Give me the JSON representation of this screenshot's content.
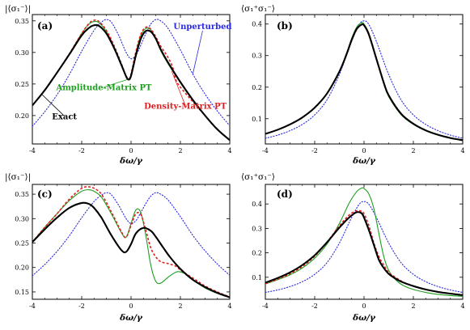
{
  "chart_data": [
    {
      "type": "line",
      "panel_label": "(a)",
      "ylabel": "|⟨σ₁⁻⟩|",
      "xlabel": "δω/γ",
      "xlim": [
        -4,
        4
      ],
      "ylim": [
        0.155,
        0.36
      ],
      "xticks": [
        -4,
        -2,
        0,
        2,
        4
      ],
      "yticks": [
        0.2,
        0.25,
        0.3,
        0.35
      ],
      "ytick_labels": [
        "0.20",
        "0.25",
        "0.30",
        "0.35"
      ],
      "xtick_labels": [
        "-4",
        "-2",
        "0",
        "2",
        "4"
      ],
      "series": [
        {
          "key": "unperturbed",
          "color": "#2a2ae0",
          "style": "dotted",
          "x": [
            -4,
            -3.5,
            -3,
            -2.5,
            -2,
            -1.5,
            -1.2,
            -1,
            -0.8,
            -0.5,
            -0.2,
            0,
            0.2,
            0.4,
            0.6,
            0.8,
            1,
            1.2,
            1.5,
            2,
            2.5,
            3,
            3.5,
            4
          ],
          "y": [
            0.183,
            0.206,
            0.233,
            0.265,
            0.302,
            0.335,
            0.348,
            0.352,
            0.348,
            0.327,
            0.3,
            0.29,
            0.296,
            0.312,
            0.33,
            0.345,
            0.352,
            0.35,
            0.338,
            0.304,
            0.266,
            0.234,
            0.207,
            0.184
          ]
        },
        {
          "key": "amplitude",
          "color": "#1f9e1f",
          "style": "solid",
          "x": [
            -4,
            -3.5,
            -3,
            -2.5,
            -2,
            -1.7,
            -1.5,
            -1.3,
            -1,
            -0.7,
            -0.4,
            -0.2,
            -0.1,
            0,
            0.2,
            0.4,
            0.6,
            0.8,
            1,
            1.2,
            1.5,
            2,
            2.5,
            3,
            3.5,
            4
          ],
          "y": [
            0.216,
            0.24,
            0.268,
            0.298,
            0.33,
            0.345,
            0.349,
            0.347,
            0.333,
            0.31,
            0.282,
            0.262,
            0.258,
            0.265,
            0.3,
            0.327,
            0.338,
            0.336,
            0.322,
            0.303,
            0.282,
            0.252,
            0.224,
            0.2,
            0.178,
            0.161
          ]
        },
        {
          "key": "density",
          "color": "#e02020",
          "style": "dashed",
          "x": [
            -4,
            -3.5,
            -3,
            -2.5,
            -2,
            -1.7,
            -1.5,
            -1.3,
            -1,
            -0.7,
            -0.4,
            -0.2,
            -0.1,
            0,
            0.2,
            0.4,
            0.6,
            0.8,
            1,
            1.2,
            1.5,
            1.7,
            1.8,
            2,
            2.5,
            3,
            3.5,
            4
          ],
          "y": [
            0.216,
            0.24,
            0.268,
            0.298,
            0.33,
            0.346,
            0.351,
            0.349,
            0.335,
            0.312,
            0.283,
            0.263,
            0.258,
            0.266,
            0.302,
            0.329,
            0.34,
            0.337,
            0.325,
            0.31,
            0.292,
            0.275,
            0.258,
            0.245,
            0.222,
            0.2,
            0.178,
            0.161
          ]
        },
        {
          "key": "exact",
          "color": "#000000",
          "style": "solid-thick",
          "x": [
            -4,
            -3.5,
            -3,
            -2.5,
            -2,
            -1.7,
            -1.5,
            -1.3,
            -1,
            -0.7,
            -0.4,
            -0.2,
            -0.1,
            0,
            0.2,
            0.4,
            0.6,
            0.8,
            1,
            1.2,
            1.5,
            2,
            2.5,
            3,
            3.5,
            4
          ],
          "y": [
            0.216,
            0.24,
            0.268,
            0.297,
            0.327,
            0.339,
            0.343,
            0.342,
            0.33,
            0.308,
            0.281,
            0.262,
            0.257,
            0.263,
            0.296,
            0.322,
            0.334,
            0.333,
            0.322,
            0.305,
            0.284,
            0.253,
            0.225,
            0.2,
            0.178,
            0.161
          ]
        }
      ],
      "annotations": [
        {
          "text": "Unperturbed",
          "color": "#2a2ae0",
          "x": 2.9,
          "y": 0.337,
          "arrow_to": [
            2.5,
            0.265
          ]
        },
        {
          "text": "Amplitude-Matrix PT",
          "color": "#1f9e1f",
          "x": -1.1,
          "y": 0.24,
          "arrow_to": [
            -0.15,
            0.257
          ]
        },
        {
          "text": "Density-Matrix PT",
          "color": "#e02020",
          "x": 2.2,
          "y": 0.211,
          "arrow_to": [
            1.65,
            0.27
          ]
        },
        {
          "text": "Exact",
          "color": "#000000",
          "x": -2.7,
          "y": 0.194,
          "arrow_to": [
            -3.6,
            0.233
          ]
        }
      ]
    },
    {
      "type": "line",
      "panel_label": "(b)",
      "ylabel": "⟨σ₁⁺σ₁⁻⟩",
      "xlabel": "δω/γ",
      "xlim": [
        -4,
        4
      ],
      "ylim": [
        0.02,
        0.43
      ],
      "xticks": [
        -4,
        -2,
        0,
        2,
        4
      ],
      "yticks": [
        0.1,
        0.2,
        0.3,
        0.4
      ],
      "ytick_labels": [
        "0.1",
        "0.2",
        "0.3",
        "0.4"
      ],
      "xtick_labels": [
        "-4",
        "-2",
        "0",
        "2",
        "4"
      ],
      "series": [
        {
          "key": "unperturbed",
          "color": "#2a2ae0",
          "style": "dotted",
          "x": [
            -4,
            -3.5,
            -3,
            -2.5,
            -2,
            -1.5,
            -1,
            -0.5,
            -0.2,
            0,
            0.2,
            0.5,
            1,
            1.5,
            2,
            2.5,
            3,
            3.5,
            4
          ],
          "y": [
            0.038,
            0.048,
            0.062,
            0.082,
            0.112,
            0.16,
            0.24,
            0.345,
            0.398,
            0.41,
            0.398,
            0.345,
            0.24,
            0.16,
            0.112,
            0.082,
            0.062,
            0.048,
            0.038
          ]
        },
        {
          "key": "amplitude",
          "color": "#1f9e1f",
          "style": "solid",
          "x": [
            -4,
            -3.5,
            -3,
            -2.5,
            -2,
            -1.5,
            -1,
            -0.7,
            -0.5,
            -0.3,
            -0.1,
            0,
            0.2,
            0.5,
            0.8,
            1,
            1.5,
            2,
            2.5,
            3,
            3.5,
            4
          ],
          "y": [
            0.052,
            0.065,
            0.082,
            0.104,
            0.135,
            0.18,
            0.25,
            0.31,
            0.355,
            0.39,
            0.404,
            0.4,
            0.37,
            0.29,
            0.21,
            0.17,
            0.113,
            0.082,
            0.062,
            0.048,
            0.038,
            0.031
          ]
        },
        {
          "key": "density",
          "color": "#e02020",
          "style": "dashed",
          "x": [
            -4,
            -3.5,
            -3,
            -2.5,
            -2,
            -1.5,
            -1,
            -0.7,
            -0.5,
            -0.3,
            -0.1,
            0,
            0.2,
            0.5,
            0.8,
            1,
            1.5,
            2,
            2.5,
            3,
            3.5,
            4
          ],
          "y": [
            0.052,
            0.065,
            0.082,
            0.104,
            0.135,
            0.18,
            0.249,
            0.305,
            0.348,
            0.382,
            0.398,
            0.396,
            0.368,
            0.292,
            0.215,
            0.175,
            0.117,
            0.084,
            0.063,
            0.049,
            0.039,
            0.032
          ]
        },
        {
          "key": "exact",
          "color": "#000000",
          "style": "solid-thick",
          "x": [
            -4,
            -3.5,
            -3,
            -2.5,
            -2,
            -1.5,
            -1,
            -0.7,
            -0.5,
            -0.3,
            -0.1,
            0,
            0.2,
            0.5,
            0.8,
            1,
            1.5,
            2,
            2.5,
            3,
            3.5,
            4
          ],
          "y": [
            0.052,
            0.065,
            0.082,
            0.104,
            0.135,
            0.18,
            0.249,
            0.306,
            0.35,
            0.384,
            0.398,
            0.396,
            0.366,
            0.29,
            0.214,
            0.174,
            0.116,
            0.084,
            0.063,
            0.049,
            0.039,
            0.032
          ]
        }
      ]
    },
    {
      "type": "line",
      "panel_label": "(c)",
      "ylabel": "|⟨σ₁⁻⟩|",
      "xlabel": "δω/γ",
      "xlim": [
        -4,
        4
      ],
      "ylim": [
        0.135,
        0.37
      ],
      "xticks": [
        -4,
        -2,
        0,
        2,
        4
      ],
      "yticks": [
        0.15,
        0.2,
        0.25,
        0.3,
        0.35
      ],
      "ytick_labels": [
        "0.15",
        "0.20",
        "0.25",
        "0.30",
        "0.35"
      ],
      "xtick_labels": [
        "-4",
        "-2",
        "0",
        "2",
        "4"
      ],
      "series": [
        {
          "key": "unperturbed",
          "color": "#2a2ae0",
          "style": "dotted",
          "x": [
            -4,
            -3.5,
            -3,
            -2.5,
            -2,
            -1.5,
            -1.2,
            -1,
            -0.8,
            -0.5,
            -0.2,
            0,
            0.2,
            0.4,
            0.6,
            0.8,
            1,
            1.2,
            1.5,
            2,
            2.5,
            3,
            3.5,
            4
          ],
          "y": [
            0.183,
            0.206,
            0.233,
            0.265,
            0.302,
            0.335,
            0.348,
            0.353,
            0.349,
            0.327,
            0.3,
            0.29,
            0.296,
            0.313,
            0.331,
            0.346,
            0.353,
            0.35,
            0.338,
            0.304,
            0.266,
            0.234,
            0.207,
            0.184
          ]
        },
        {
          "key": "amplitude",
          "color": "#1f9e1f",
          "style": "solid",
          "x": [
            -4,
            -3.5,
            -3,
            -2.5,
            -2,
            -1.7,
            -1.5,
            -1.2,
            -0.8,
            -0.4,
            -0.2,
            0,
            0.2,
            0.4,
            0.6,
            0.8,
            1,
            1.2,
            1.5,
            1.8,
            2,
            2.3,
            2.7,
            3,
            3.5,
            4
          ],
          "y": [
            0.252,
            0.282,
            0.31,
            0.337,
            0.356,
            0.359,
            0.356,
            0.344,
            0.31,
            0.272,
            0.262,
            0.29,
            0.318,
            0.312,
            0.265,
            0.205,
            0.172,
            0.168,
            0.18,
            0.19,
            0.191,
            0.184,
            0.168,
            0.158,
            0.147,
            0.139
          ]
        },
        {
          "key": "density",
          "color": "#e02020",
          "style": "dashed",
          "x": [
            -4,
            -3.5,
            -3,
            -2.5,
            -2,
            -1.7,
            -1.5,
            -1.2,
            -0.8,
            -0.4,
            -0.2,
            0,
            0.2,
            0.4,
            0.6,
            0.8,
            1,
            1.2,
            1.5,
            1.8,
            2,
            2.3,
            2.7,
            3,
            3.5,
            4
          ],
          "y": [
            0.252,
            0.282,
            0.31,
            0.34,
            0.362,
            0.365,
            0.362,
            0.35,
            0.314,
            0.274,
            0.262,
            0.286,
            0.31,
            0.308,
            0.276,
            0.24,
            0.222,
            0.212,
            0.208,
            0.203,
            0.195,
            0.185,
            0.172,
            0.162,
            0.15,
            0.14
          ]
        },
        {
          "key": "exact",
          "color": "#000000",
          "style": "solid-thick",
          "x": [
            -4,
            -3.5,
            -3,
            -2.5,
            -2,
            -1.7,
            -1.5,
            -1.2,
            -0.8,
            -0.4,
            -0.2,
            0,
            0.2,
            0.5,
            0.8,
            1,
            1.3,
            1.6,
            2,
            2.5,
            3,
            3.5,
            4
          ],
          "y": [
            0.252,
            0.278,
            0.302,
            0.322,
            0.332,
            0.33,
            0.322,
            0.302,
            0.266,
            0.236,
            0.232,
            0.248,
            0.27,
            0.281,
            0.275,
            0.263,
            0.241,
            0.22,
            0.197,
            0.175,
            0.16,
            0.148,
            0.139
          ]
        }
      ]
    },
    {
      "type": "line",
      "panel_label": "(d)",
      "ylabel": "⟨σ₁⁺σ₁⁻⟩",
      "xlabel": "δω/γ",
      "xlim": [
        -4,
        4
      ],
      "ylim": [
        0.01,
        0.48
      ],
      "xticks": [
        -4,
        -2,
        0,
        2,
        4
      ],
      "yticks": [
        0.1,
        0.2,
        0.3,
        0.4
      ],
      "ytick_labels": [
        "0.1",
        "0.2",
        "0.3",
        "0.4"
      ],
      "xtick_labels": [
        "-4",
        "-2",
        "0",
        "2",
        "4"
      ],
      "series": [
        {
          "key": "unperturbed",
          "color": "#2a2ae0",
          "style": "dotted",
          "x": [
            -4,
            -3.5,
            -3,
            -2.5,
            -2,
            -1.5,
            -1,
            -0.5,
            -0.2,
            0,
            0.2,
            0.5,
            1,
            1.5,
            2,
            2.5,
            3,
            3.5,
            4
          ],
          "y": [
            0.038,
            0.048,
            0.062,
            0.082,
            0.112,
            0.16,
            0.24,
            0.345,
            0.398,
            0.41,
            0.398,
            0.345,
            0.24,
            0.16,
            0.112,
            0.082,
            0.062,
            0.048,
            0.038
          ]
        },
        {
          "key": "amplitude",
          "color": "#1f9e1f",
          "style": "solid",
          "x": [
            -4,
            -3.5,
            -3,
            -2.5,
            -2,
            -1.5,
            -1,
            -0.6,
            -0.3,
            -0.1,
            0,
            0.2,
            0.4,
            0.6,
            0.8,
            1,
            1.3,
            1.6,
            2,
            2.5,
            3,
            3.5,
            4
          ],
          "y": [
            0.073,
            0.09,
            0.11,
            0.138,
            0.178,
            0.236,
            0.32,
            0.404,
            0.45,
            0.465,
            0.463,
            0.44,
            0.38,
            0.28,
            0.185,
            0.128,
            0.088,
            0.066,
            0.05,
            0.038,
            0.03,
            0.025,
            0.022
          ]
        },
        {
          "key": "density",
          "color": "#e02020",
          "style": "dashed",
          "x": [
            -4,
            -3.5,
            -3,
            -2.5,
            -2,
            -1.5,
            -1,
            -0.6,
            -0.3,
            -0.1,
            0,
            0.2,
            0.4,
            0.6,
            0.8,
            1,
            1.3,
            1.6,
            2,
            2.5,
            3,
            3.5,
            4
          ],
          "y": [
            0.074,
            0.092,
            0.114,
            0.144,
            0.186,
            0.244,
            0.31,
            0.355,
            0.372,
            0.37,
            0.36,
            0.31,
            0.24,
            0.185,
            0.15,
            0.12,
            0.098,
            0.08,
            0.064,
            0.05,
            0.04,
            0.033,
            0.027
          ]
        },
        {
          "key": "exact",
          "color": "#000000",
          "style": "solid-thick",
          "x": [
            -4,
            -3.5,
            -3,
            -2.5,
            -2,
            -1.5,
            -1,
            -0.6,
            -0.3,
            -0.1,
            0,
            0.2,
            0.4,
            0.6,
            0.8,
            1,
            1.3,
            1.6,
            2,
            2.5,
            3,
            3.5,
            4
          ],
          "y": [
            0.078,
            0.097,
            0.12,
            0.15,
            0.19,
            0.243,
            0.303,
            0.345,
            0.366,
            0.362,
            0.344,
            0.292,
            0.232,
            0.172,
            0.138,
            0.114,
            0.093,
            0.078,
            0.064,
            0.05,
            0.04,
            0.033,
            0.027
          ]
        }
      ]
    }
  ]
}
